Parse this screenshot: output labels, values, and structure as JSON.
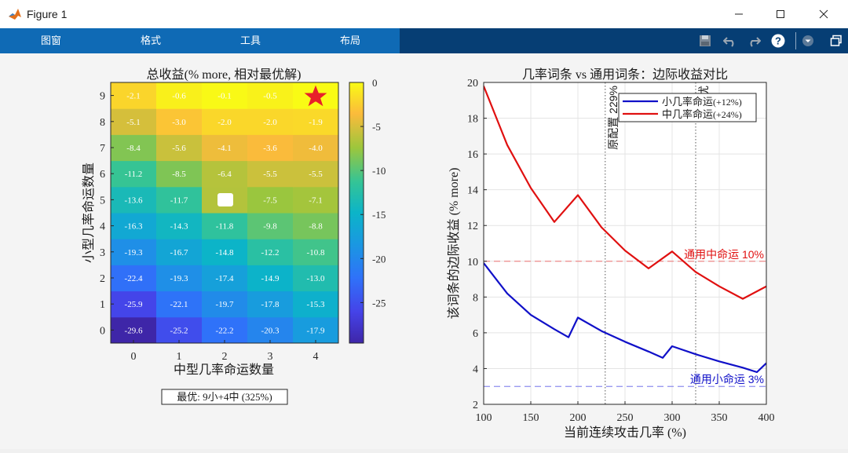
{
  "window": {
    "title": "Figure 1"
  },
  "menu": {
    "tabs": [
      "图窗",
      "格式",
      "工具",
      "布局"
    ]
  },
  "icons": {
    "app": "matlab-logo-icon",
    "save": "save-icon",
    "undo": "undo-icon",
    "redo": "redo-icon",
    "help": "help-icon",
    "dropdown": "chevron-down-icon",
    "undock": "undock-icon"
  },
  "colors": {
    "accent": "#0f6ab5",
    "toolstrip": "#063e74",
    "series_small": "#1010c8",
    "series_medium": "#e01010"
  },
  "heatmap": {
    "title_cn": "总收益",
    "title_paren": "(% more, ",
    "title_cn2": "相对最优解",
    "title_close": ")",
    "xlabel": "中型几率命运数量",
    "ylabel": "小型几率命运数量",
    "footer_prefix": "最优",
    "footer_suffix": ": 9小+4中 (325%)",
    "colorbar_ticks": [
      "0",
      "-5",
      "-10",
      "-15",
      "-20",
      "-25"
    ]
  },
  "chart_data": [
    {
      "type": "heatmap",
      "title": "总收益 (% more, 相对最优解)",
      "xlabel": "中型几率命运数量",
      "ylabel": "小型几率命运数量",
      "x": [
        0,
        1,
        2,
        3,
        4
      ],
      "y": [
        0,
        1,
        2,
        3,
        4,
        5,
        6,
        7,
        8,
        9
      ],
      "values": [
        [
          -29.6,
          -25.2,
          -22.2,
          -20.3,
          -17.9
        ],
        [
          -25.9,
          -22.1,
          -19.7,
          -17.8,
          -15.3
        ],
        [
          -22.4,
          -19.3,
          -17.4,
          -14.9,
          -13.0
        ],
        [
          -19.3,
          -16.7,
          -14.8,
          -12.2,
          -10.8
        ],
        [
          -16.3,
          -14.3,
          -11.8,
          -9.8,
          -8.8
        ],
        [
          -13.6,
          -11.7,
          null,
          -7.5,
          -7.1
        ],
        [
          -11.2,
          -8.5,
          -6.4,
          -5.5,
          -5.5
        ],
        [
          -8.4,
          -5.6,
          -4.1,
          -3.6,
          -4.0
        ],
        [
          -5.1,
          -3.0,
          -2.0,
          -2.0,
          -1.9
        ],
        [
          -2.1,
          -0.6,
          -0.1,
          -0.5,
          0.0
        ]
      ],
      "cell_labels": [
        [
          "-29.6",
          "-25.2",
          "-22.2",
          "-20.3",
          "-17.9"
        ],
        [
          "-25.9",
          "-22.1",
          "-19.7",
          "-17.8",
          "-15.3"
        ],
        [
          "-22.4",
          "-19.3",
          "-17.4",
          "-14.9",
          "-13.0"
        ],
        [
          "-19.3",
          "-16.7",
          "-14.8",
          "-12.2",
          "-10.8"
        ],
        [
          "-16.3",
          "-14.3",
          "-11.8",
          "-9.8",
          "-8.8"
        ],
        [
          "-13.6",
          "-11.7",
          "",
          "-7.5",
          "-7.1"
        ],
        [
          "-11.2",
          "-8.5",
          "-6.4",
          "-5.5",
          "-5.5"
        ],
        [
          "-8.4",
          "-5.6",
          "-4.1",
          "-3.6",
          "-4.0"
        ],
        [
          "-5.1",
          "-3.0",
          "-2.0",
          "-2.0",
          "-1.9"
        ],
        [
          "-2.1",
          "-0.6",
          "-0.1",
          "-0.5",
          "0.0"
        ]
      ],
      "current_config_marker": [
        2,
        5
      ],
      "optimum_marker": [
        4,
        9
      ],
      "clim": [
        -29.6,
        0
      ],
      "colorbar_ticks": [
        0,
        -5,
        -10,
        -15,
        -20,
        -25
      ],
      "colormap": "parula"
    },
    {
      "type": "line",
      "title": "几率词条 vs 通用词条：边际收益对比",
      "xlabel": "当前连续攻击几率 (%)",
      "ylabel": "该词条的边际收益 (% more)",
      "xlim": [
        100,
        400
      ],
      "ylim": [
        2,
        20
      ],
      "xticks": [
        100,
        150,
        200,
        250,
        300,
        350,
        400
      ],
      "yticks": [
        2,
        4,
        6,
        8,
        10,
        12,
        14,
        16,
        18,
        20
      ],
      "grid": true,
      "legend_position": "top-right",
      "series": [
        {
          "name": "小几率命运(+12%)",
          "legend_cn": "小几率命运",
          "legend_paren": "(+12%)",
          "color": "#1010c8",
          "x": [
            100,
            125,
            150,
            175,
            190,
            200,
            225,
            250,
            275,
            290,
            300,
            325,
            350,
            375,
            390,
            400
          ],
          "y": [
            9.9,
            8.2,
            7.0,
            6.2,
            5.75,
            6.85,
            6.1,
            5.5,
            4.95,
            4.6,
            5.25,
            4.8,
            4.4,
            4.05,
            3.8,
            4.3
          ]
        },
        {
          "name": "中几率命运(+24%)",
          "legend_cn": "中几率命运",
          "legend_paren": "(+24%)",
          "color": "#e01010",
          "x": [
            100,
            125,
            150,
            175,
            200,
            225,
            250,
            275,
            300,
            325,
            350,
            375,
            400
          ],
          "y": [
            19.8,
            16.5,
            14.1,
            12.2,
            13.7,
            11.9,
            10.6,
            9.6,
            10.55,
            9.4,
            8.6,
            7.9,
            8.6
          ]
        }
      ],
      "reference_lines": [
        {
          "label": "通用中命运 10%",
          "y": 10,
          "color": "#e01010"
        },
        {
          "label": "通用小命运 3%",
          "y": 3,
          "color": "#1010c8"
        }
      ],
      "vertical_markers": [
        {
          "label": "原配置 229%",
          "x": 229
        },
        {
          "label": "最优",
          "x": 325
        }
      ]
    }
  ]
}
